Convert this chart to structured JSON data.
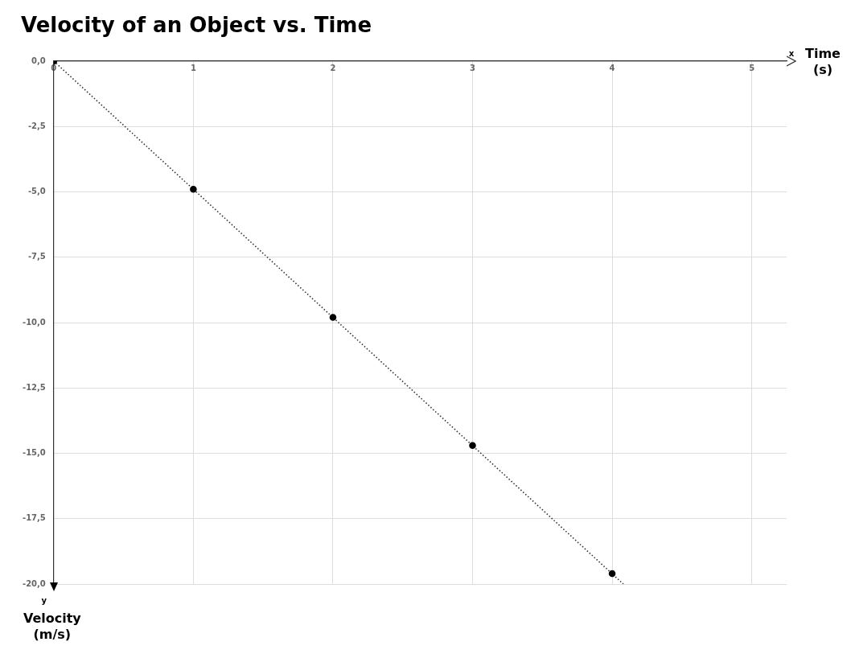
{
  "chart_data": {
    "type": "scatter",
    "title": "Velocity of an Object vs. Time",
    "xlabel": "Time\n(s)",
    "ylabel": "Velocity\n(m/s)",
    "annotations": [
      "x",
      "y"
    ],
    "series": [
      {
        "type": "scatter",
        "color": "#000000",
        "x": [
          0,
          1,
          2,
          3,
          4
        ],
        "values": [
          0,
          -4.9,
          -9.8,
          -14.7,
          -19.6
        ],
        "marker": "circle"
      },
      {
        "type": "line",
        "color": "#333333",
        "x": [
          0,
          4.08
        ],
        "values": [
          0,
          -20
        ],
        "line_style": "dotted",
        "marker": "none"
      }
    ],
    "xlim": [
      0,
      5.25
    ],
    "xticks": [
      0,
      1,
      2,
      3,
      4,
      5
    ],
    "ylim": [
      -20,
      0
    ],
    "yticks": [
      {
        "value": 0,
        "label": "0,0"
      },
      {
        "value": -2.5,
        "label": "-2,5"
      },
      {
        "value": -5,
        "label": "-5,0"
      },
      {
        "value": -7.5,
        "label": "-7,5"
      },
      {
        "value": -10,
        "label": "-10,0"
      },
      {
        "value": -12.5,
        "label": "-12,5"
      },
      {
        "value": -15,
        "label": "-15,0"
      },
      {
        "value": -17.5,
        "label": "-17,5"
      },
      {
        "value": -20,
        "label": "-20,0"
      }
    ],
    "grid": true,
    "legend": false
  }
}
